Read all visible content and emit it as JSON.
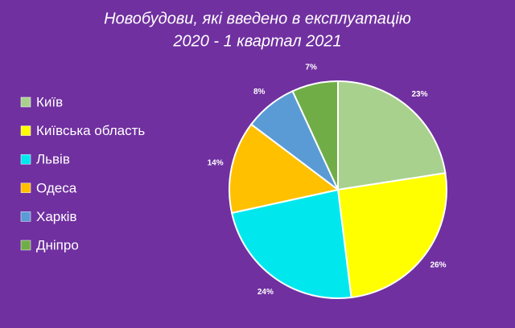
{
  "chart_data": {
    "type": "pie",
    "title": "Новобудови, які введено в експлуатацію",
    "subtitle": "2020 - 1 квартал 2021",
    "categories": [
      "Київ",
      "Київська область",
      "Львів",
      "Одеса",
      "Харків",
      "Дніпро"
    ],
    "values": [
      23,
      26,
      24,
      14,
      8,
      7
    ],
    "value_labels": [
      "23%",
      "26%",
      "24%",
      "14%",
      "8%",
      "7%"
    ],
    "colors": [
      "#a9d18e",
      "#ffff00",
      "#00e8ee",
      "#ffc000",
      "#5b9bd5",
      "#70ad47"
    ],
    "legend": "left"
  }
}
